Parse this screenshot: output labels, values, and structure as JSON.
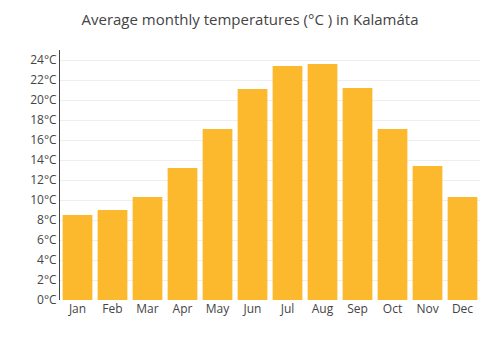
{
  "chart_data": {
    "type": "bar",
    "title": "Average monthly temperatures (°C ) in Kalamáta",
    "categories": [
      "Jan",
      "Feb",
      "Mar",
      "Apr",
      "May",
      "Jun",
      "Jul",
      "Aug",
      "Sep",
      "Oct",
      "Nov",
      "Dec"
    ],
    "values": [
      8.5,
      9.0,
      10.3,
      13.2,
      17.1,
      21.1,
      23.4,
      23.6,
      21.2,
      17.1,
      13.4,
      10.3
    ],
    "color": "#FDB92E",
    "ylim": [
      0,
      25
    ],
    "yticks": [
      {
        "value": 0,
        "label": "0°C"
      },
      {
        "value": 2,
        "label": "2°C"
      },
      {
        "value": 4,
        "label": "4°C"
      },
      {
        "value": 6,
        "label": "6°C"
      },
      {
        "value": 8,
        "label": "8°C"
      },
      {
        "value": 10,
        "label": "10°C"
      },
      {
        "value": 12,
        "label": "12°C"
      },
      {
        "value": 14,
        "label": "14°C"
      },
      {
        "value": 16,
        "label": "16°C"
      },
      {
        "value": 18,
        "label": "18°C"
      },
      {
        "value": 20,
        "label": "20°C"
      },
      {
        "value": 22,
        "label": "22°C"
      },
      {
        "value": 24,
        "label": "24°C"
      }
    ],
    "grid": true
  }
}
